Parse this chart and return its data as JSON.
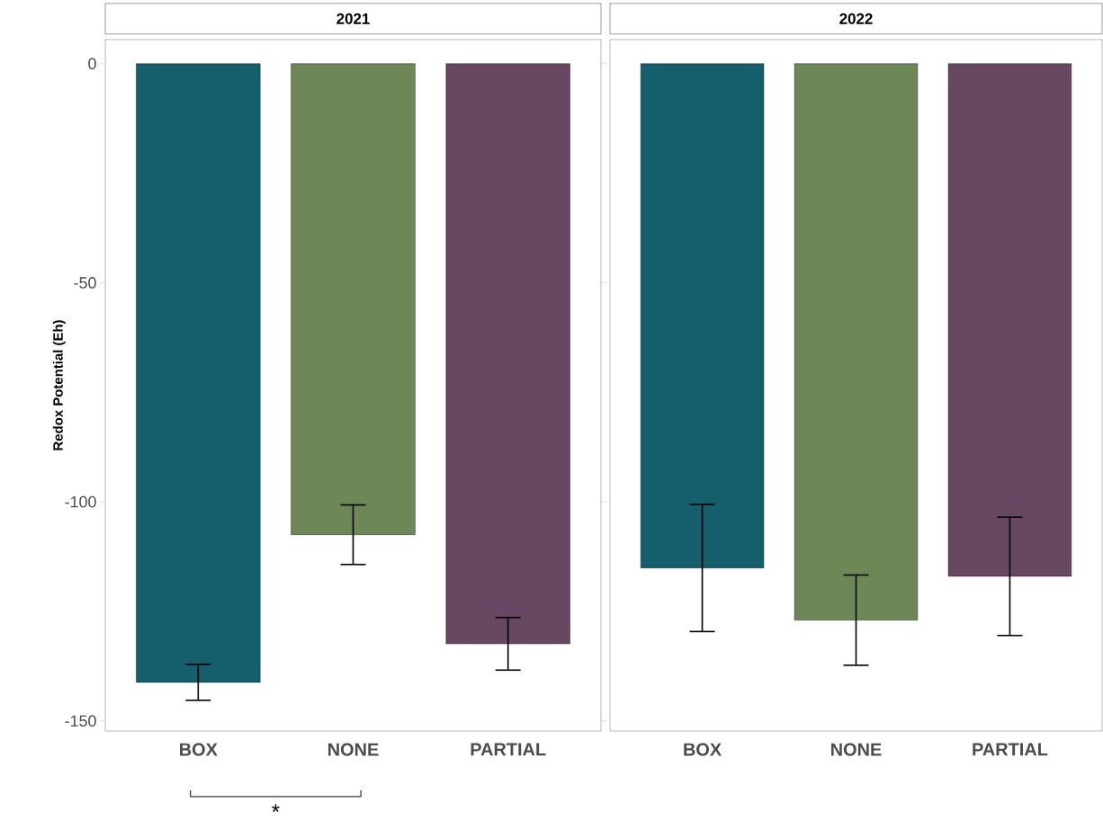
{
  "chart_data": [
    {
      "type": "bar",
      "title": "2021",
      "ylabel": "Redox Potential (Eh)",
      "categories": [
        "BOX",
        "NONE",
        "PARTIAL"
      ],
      "values": [
        -141.2,
        -107.5,
        -132.4
      ],
      "errors": [
        4.1,
        6.8,
        6.0
      ],
      "colors": [
        "#155e6b",
        "#6e8757",
        "#684763"
      ],
      "ylim": [
        -152.3,
        5.5
      ],
      "yticks": [
        0,
        -50,
        -100,
        -150
      ],
      "annotations": [
        "*"
      ]
    },
    {
      "type": "bar",
      "title": "2022",
      "categories": [
        "BOX",
        "NONE",
        "PARTIAL"
      ],
      "values": [
        -115.1,
        -127.0,
        -117.0
      ],
      "errors": [
        14.5,
        10.3,
        13.5
      ],
      "colors": [
        "#155e6b",
        "#6e8757",
        "#684763"
      ],
      "ylim": [
        -152.3,
        5.5
      ],
      "tick_labels": "x"
    }
  ]
}
